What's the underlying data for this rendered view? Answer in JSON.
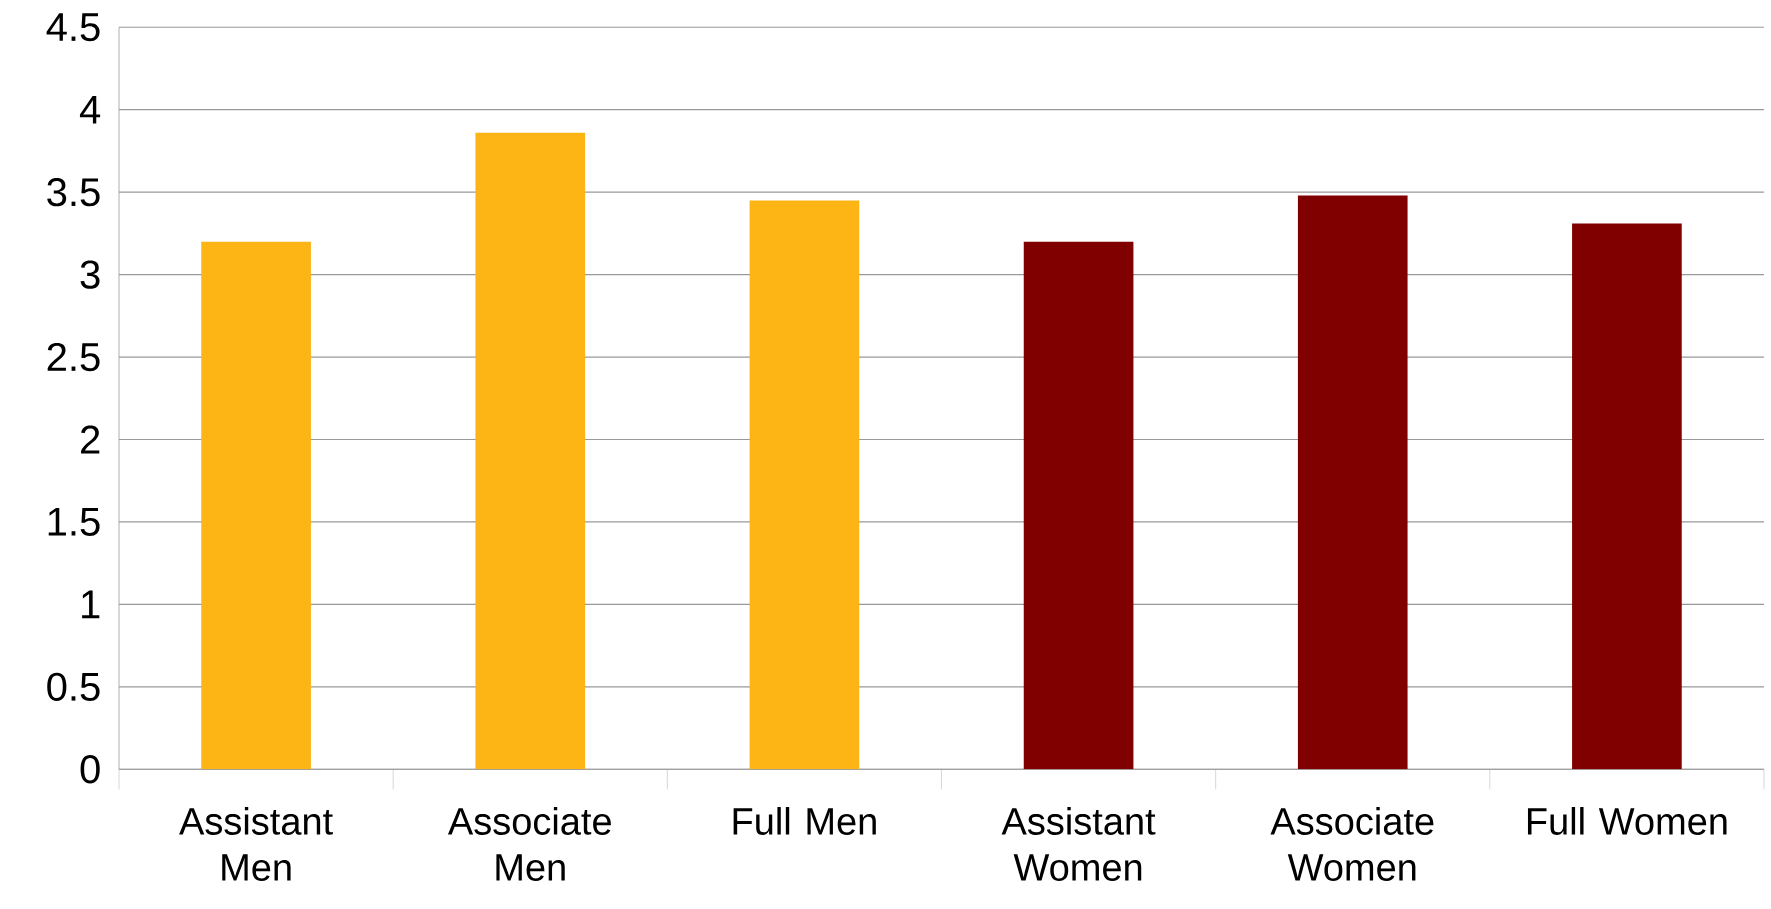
{
  "chart_data": {
    "type": "bar",
    "categories": [
      "Assistant Men",
      "Associate Men",
      "Full Men",
      "Assistant Women",
      "Associate Women",
      "Full Women"
    ],
    "values": [
      3.2,
      3.86,
      3.45,
      3.2,
      3.48,
      3.31
    ],
    "colors": [
      "#fdb515",
      "#fdb515",
      "#fdb515",
      "#800000",
      "#800000",
      "#800000"
    ],
    "ylim": [
      0,
      4.5
    ],
    "yticks": [
      0,
      0.5,
      1,
      1.5,
      2,
      2.5,
      3,
      3.5,
      4,
      4.5
    ],
    "grid": "y"
  }
}
